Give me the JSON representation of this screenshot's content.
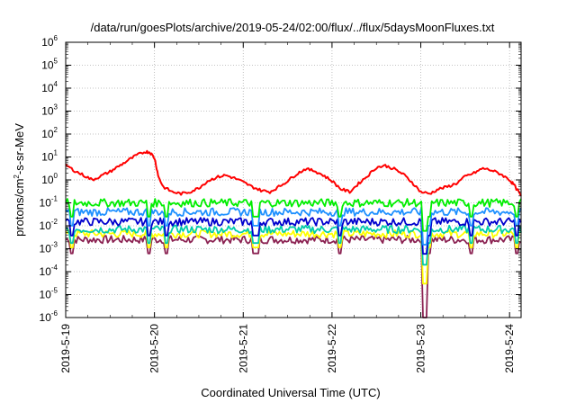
{
  "chart_data": {
    "type": "line",
    "title": "/data/run/goesPlots/archive/2019-05-24/02:00/flux/../flux/5daysMoonFluxes.txt",
    "xlabel": "Coordinated Universal Time (UTC)",
    "ylabel": {
      "prefix": "protons/cm",
      "sup": "2",
      "suffix": "-s-sr-MeV"
    },
    "y_scale": "log",
    "ylim": [
      1e-06,
      1000000.0
    ],
    "y_ticks": [
      {
        "base": "10",
        "exp": "-6"
      },
      {
        "base": "10",
        "exp": "-5"
      },
      {
        "base": "10",
        "exp": "-4"
      },
      {
        "base": "10",
        "exp": "-3"
      },
      {
        "base": "10",
        "exp": "-2"
      },
      {
        "base": "10",
        "exp": "-1"
      },
      {
        "base": "10",
        "exp": "0"
      },
      {
        "base": "10",
        "exp": "1"
      },
      {
        "base": "10",
        "exp": "2"
      },
      {
        "base": "10",
        "exp": "3"
      },
      {
        "base": "10",
        "exp": "4"
      },
      {
        "base": "10",
        "exp": "5"
      },
      {
        "base": "10",
        "exp": "6"
      }
    ],
    "x_unit": "days since 2019-5-19 00:00",
    "xlim": [
      0,
      5.13
    ],
    "x_ticks": [
      "2019-5-19",
      "2019-5-20",
      "2019-5-21",
      "2019-5-22",
      "2019-5-23",
      "2019-5-24"
    ],
    "grid": true,
    "series": [
      {
        "color": "#ff0000",
        "x": [
          0,
          0.1,
          0.2,
          0.3,
          0.4,
          0.5,
          0.6,
          0.7,
          0.8,
          0.9,
          0.95,
          1.0,
          1.05,
          1.1,
          1.2,
          1.3,
          1.4,
          1.5,
          1.6,
          1.7,
          1.8,
          1.9,
          2.0,
          2.1,
          2.2,
          2.3,
          2.4,
          2.5,
          2.6,
          2.7,
          2.8,
          2.9,
          3.0,
          3.1,
          3.2,
          3.3,
          3.4,
          3.5,
          3.6,
          3.7,
          3.8,
          3.9,
          4.0,
          4.1,
          4.2,
          4.3,
          4.4,
          4.5,
          4.6,
          4.7,
          4.8,
          4.9,
          5.0,
          5.05,
          5.13
        ],
        "y": [
          4.5,
          2.5,
          1.6,
          1.0,
          1.5,
          2.3,
          4,
          7,
          12,
          17,
          16,
          9,
          1.2,
          0.5,
          0.3,
          0.25,
          0.3,
          0.45,
          0.9,
          1.3,
          1.6,
          1.2,
          0.8,
          0.5,
          0.35,
          0.3,
          0.5,
          0.9,
          1.8,
          3,
          2.5,
          1.6,
          0.9,
          0.4,
          0.3,
          0.7,
          1.5,
          3.5,
          4.2,
          3.0,
          1.8,
          0.8,
          0.3,
          0.25,
          0.4,
          0.5,
          0.7,
          1.4,
          2.0,
          3.2,
          2.6,
          1.8,
          1.0,
          0.6,
          0.2
        ]
      },
      {
        "color": "#00ee00",
        "level": 0.1,
        "dip": 0.006
      },
      {
        "color": "#1e90ff",
        "level": 0.04,
        "dip": 0.0015
      },
      {
        "color": "#0000cd",
        "level": 0.015,
        "dip": 0.0006
      },
      {
        "color": "#00ccaa",
        "level": 0.007,
        "dip": 0.0002
      },
      {
        "color": "#ffff00",
        "level": 0.0045,
        "dip": 3e-05
      },
      {
        "color": "#8b2252",
        "level": 0.0025,
        "dip": 1e-06
      }
    ]
  }
}
